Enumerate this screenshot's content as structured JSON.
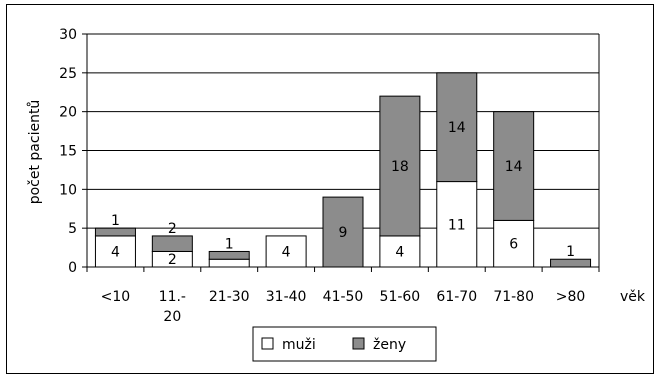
{
  "chart_data": {
    "type": "bar",
    "stacked": true,
    "categories": [
      "<10",
      "11.-20",
      "21-30",
      "31-40",
      "41-50",
      "51-60",
      "61-70",
      "71-80",
      ">80"
    ],
    "category_label_lines": [
      [
        "<10"
      ],
      [
        "11.-",
        "20"
      ],
      [
        "21-30"
      ],
      [
        "31-40"
      ],
      [
        "41-50"
      ],
      [
        "51-60"
      ],
      [
        "61-70"
      ],
      [
        "71-80"
      ],
      [
        ">80"
      ]
    ],
    "series": [
      {
        "name": "muži",
        "values": [
          4,
          2,
          1,
          4,
          0,
          4,
          11,
          6,
          0
        ],
        "color": "#ffffff"
      },
      {
        "name": "ženy",
        "values": [
          1,
          2,
          1,
          0,
          9,
          18,
          14,
          14,
          1
        ],
        "color": "#8c8c8c"
      }
    ],
    "data_labels": {
      "muži": [
        "4",
        "2",
        "",
        "4",
        "",
        "4",
        "11",
        "6",
        ""
      ],
      "ženy": [
        "1",
        "2",
        "1",
        "",
        "9",
        "18",
        "14",
        "14",
        "1"
      ]
    },
    "xlabel": "věk",
    "ylabel": "počet pacientů",
    "ylim": [
      0,
      30
    ],
    "yticks": [
      0,
      5,
      10,
      15,
      20,
      25,
      30
    ],
    "grid": true,
    "legend_position": "bottom"
  }
}
